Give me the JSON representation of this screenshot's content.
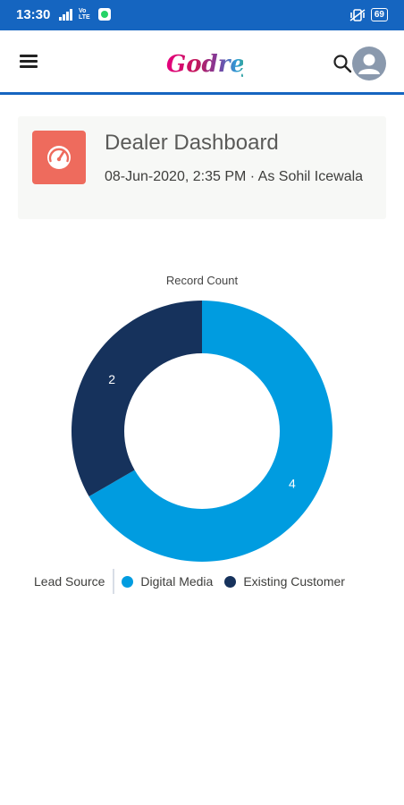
{
  "status_bar": {
    "time": "13:30",
    "volte": "Vo LTE",
    "battery": "69"
  },
  "header": {
    "logo_text": "Godrej"
  },
  "dashboard": {
    "title": "Dealer Dashboard",
    "subtitle": "08-Jun-2020, 2:35 PM  ·  As Sohil Icewala"
  },
  "chart_data": {
    "type": "pie",
    "title": "Record Count",
    "legend_title": "Lead Source",
    "legend_position": "bottom",
    "categories": [
      "Digital Media",
      "Existing Customer"
    ],
    "values": [
      4,
      2
    ],
    "colors": [
      "#009ce0",
      "#16325c"
    ],
    "donut": true
  }
}
